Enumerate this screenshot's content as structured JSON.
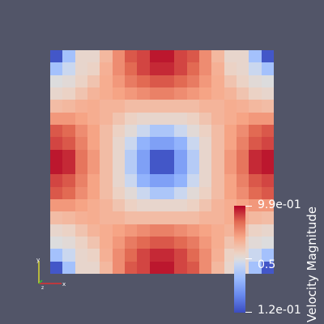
{
  "colorbar": {
    "title": "Velocity Magnitude",
    "max_label": "9.9e-01",
    "mid_label": "0.5",
    "min_label": "1.2e-01",
    "min_value": 0.12,
    "max_value": 0.99,
    "colormap": [
      "#3b4cc0",
      "#6788ee",
      "#9abbff",
      "#c9d7f0",
      "#dddcdc",
      "#edd1c2",
      "#f7a889",
      "#e26952",
      "#b40426"
    ]
  },
  "background_color": "#525568",
  "axes_widget": {
    "x_color": "#e03030",
    "y_color": "#d8d830",
    "z_color": "#30c030"
  },
  "chart_data": {
    "type": "heatmap",
    "rows": 18,
    "cols": 18,
    "values": [
      [
        0.14,
        0.36,
        0.62,
        0.62,
        0.73,
        0.82,
        0.9,
        0.92,
        0.97,
        0.97,
        0.92,
        0.9,
        0.82,
        0.73,
        0.62,
        0.62,
        0.36,
        0.14
      ],
      [
        0.36,
        0.45,
        0.62,
        0.65,
        0.75,
        0.82,
        0.88,
        0.92,
        0.95,
        0.95,
        0.92,
        0.88,
        0.82,
        0.75,
        0.65,
        0.62,
        0.45,
        0.36
      ],
      [
        0.55,
        0.58,
        0.65,
        0.7,
        0.76,
        0.8,
        0.85,
        0.88,
        0.9,
        0.9,
        0.88,
        0.85,
        0.8,
        0.76,
        0.7,
        0.65,
        0.58,
        0.55
      ],
      [
        0.62,
        0.65,
        0.7,
        0.74,
        0.76,
        0.78,
        0.8,
        0.82,
        0.84,
        0.84,
        0.82,
        0.8,
        0.78,
        0.76,
        0.74,
        0.7,
        0.65,
        0.62
      ],
      [
        0.72,
        0.73,
        0.75,
        0.76,
        0.74,
        0.74,
        0.72,
        0.72,
        0.72,
        0.72,
        0.72,
        0.72,
        0.74,
        0.74,
        0.76,
        0.75,
        0.73,
        0.72
      ],
      [
        0.8,
        0.8,
        0.78,
        0.76,
        0.74,
        0.7,
        0.66,
        0.62,
        0.62,
        0.62,
        0.62,
        0.66,
        0.7,
        0.74,
        0.76,
        0.78,
        0.8,
        0.8
      ],
      [
        0.9,
        0.88,
        0.82,
        0.78,
        0.72,
        0.66,
        0.58,
        0.45,
        0.38,
        0.38,
        0.45,
        0.58,
        0.66,
        0.72,
        0.78,
        0.82,
        0.88,
        0.9
      ],
      [
        0.92,
        0.9,
        0.84,
        0.78,
        0.72,
        0.62,
        0.45,
        0.32,
        0.28,
        0.28,
        0.32,
        0.45,
        0.62,
        0.72,
        0.78,
        0.84,
        0.9,
        0.92
      ],
      [
        0.97,
        0.95,
        0.86,
        0.8,
        0.72,
        0.62,
        0.4,
        0.28,
        0.14,
        0.14,
        0.28,
        0.4,
        0.62,
        0.72,
        0.8,
        0.86,
        0.95,
        0.97
      ],
      [
        0.97,
        0.95,
        0.86,
        0.8,
        0.72,
        0.62,
        0.4,
        0.28,
        0.14,
        0.14,
        0.28,
        0.4,
        0.62,
        0.72,
        0.8,
        0.86,
        0.95,
        0.97
      ],
      [
        0.92,
        0.9,
        0.84,
        0.78,
        0.72,
        0.62,
        0.45,
        0.32,
        0.28,
        0.28,
        0.32,
        0.45,
        0.62,
        0.72,
        0.78,
        0.84,
        0.9,
        0.92
      ],
      [
        0.9,
        0.88,
        0.82,
        0.78,
        0.72,
        0.66,
        0.58,
        0.45,
        0.38,
        0.38,
        0.45,
        0.58,
        0.66,
        0.72,
        0.78,
        0.82,
        0.88,
        0.9
      ],
      [
        0.8,
        0.8,
        0.78,
        0.76,
        0.74,
        0.7,
        0.66,
        0.62,
        0.62,
        0.62,
        0.62,
        0.66,
        0.7,
        0.74,
        0.76,
        0.78,
        0.8,
        0.8
      ],
      [
        0.72,
        0.73,
        0.75,
        0.76,
        0.74,
        0.74,
        0.72,
        0.72,
        0.72,
        0.72,
        0.72,
        0.72,
        0.74,
        0.74,
        0.76,
        0.75,
        0.73,
        0.72
      ],
      [
        0.62,
        0.65,
        0.7,
        0.74,
        0.76,
        0.78,
        0.8,
        0.82,
        0.84,
        0.84,
        0.82,
        0.8,
        0.78,
        0.76,
        0.74,
        0.7,
        0.65,
        0.62
      ],
      [
        0.55,
        0.58,
        0.65,
        0.7,
        0.76,
        0.8,
        0.85,
        0.88,
        0.9,
        0.9,
        0.88,
        0.85,
        0.8,
        0.76,
        0.7,
        0.65,
        0.58,
        0.55
      ],
      [
        0.36,
        0.45,
        0.62,
        0.65,
        0.75,
        0.82,
        0.88,
        0.92,
        0.95,
        0.95,
        0.92,
        0.88,
        0.82,
        0.75,
        0.65,
        0.62,
        0.45,
        0.36
      ],
      [
        0.14,
        0.36,
        0.62,
        0.62,
        0.73,
        0.82,
        0.9,
        0.92,
        0.97,
        0.97,
        0.92,
        0.9,
        0.82,
        0.73,
        0.62,
        0.62,
        0.36,
        0.14
      ]
    ]
  }
}
